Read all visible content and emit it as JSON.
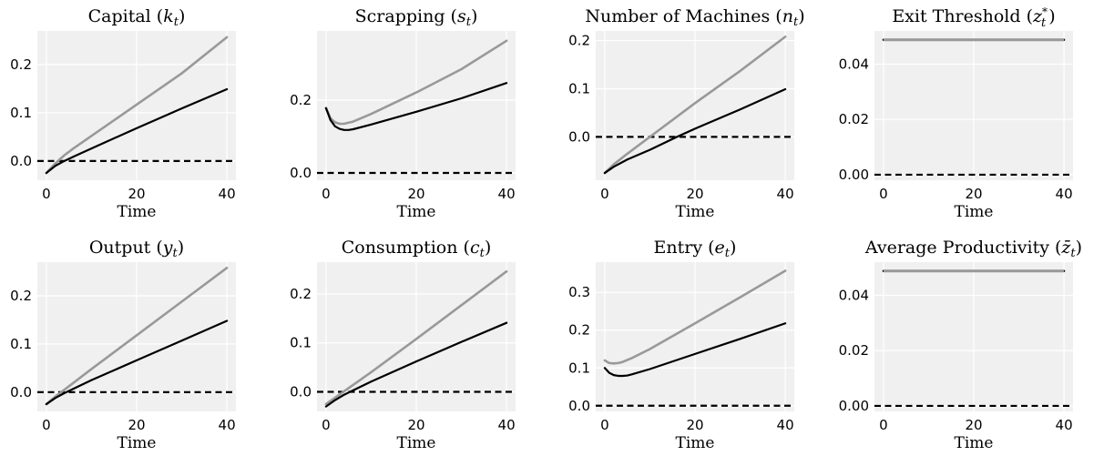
{
  "figure": {
    "colors": {
      "background": "#f0f0f0",
      "grid": "#ffffff",
      "series_black": "#000000",
      "series_gray": "#999999",
      "zero_line": "#000000"
    }
  },
  "chart_data": [
    {
      "type": "line",
      "title": "Capital (k_t)",
      "title_base": "Capital (",
      "title_var": "k",
      "title_sub": "t",
      "title_end": ")",
      "xlabel": "Time",
      "ylabel": "",
      "xlim": [
        -2,
        42
      ],
      "ylim": [
        -0.04,
        0.27
      ],
      "xticks": [
        0,
        20,
        40
      ],
      "yticks": [
        0.0,
        0.1,
        0.2
      ],
      "ytick_labels": [
        "0.0",
        "0.1",
        "0.2"
      ],
      "grid": true,
      "zero_line": {
        "y": 0,
        "style": "dashed"
      },
      "series": [
        {
          "style": "gray",
          "x": [
            0,
            2,
            4,
            6,
            10,
            20,
            30,
            40
          ],
          "y": [
            -0.025,
            -0.005,
            0.012,
            0.026,
            0.052,
            0.117,
            0.182,
            0.257
          ]
        },
        {
          "style": "black",
          "x": [
            0,
            2,
            4,
            6,
            10,
            20,
            30,
            40
          ],
          "y": [
            -0.025,
            -0.01,
            0.0,
            0.009,
            0.026,
            0.068,
            0.109,
            0.149
          ]
        }
      ]
    },
    {
      "type": "line",
      "title": "Scrapping (s_t)",
      "title_base": "Scrapping (",
      "title_var": "s",
      "title_sub": "t",
      "title_end": ")",
      "xlabel": "Time",
      "ylabel": "",
      "xlim": [
        -2,
        42
      ],
      "ylim": [
        -0.02,
        0.39
      ],
      "xticks": [
        0,
        20,
        40
      ],
      "yticks": [
        0.0,
        0.2
      ],
      "ytick_labels": [
        "0.0",
        "0.2"
      ],
      "grid": true,
      "zero_line": {
        "y": 0,
        "style": "dashed"
      },
      "series": [
        {
          "style": "gray",
          "x": [
            0,
            1,
            2,
            3,
            4,
            6,
            10,
            20,
            30,
            40
          ],
          "y": [
            0.178,
            0.15,
            0.139,
            0.135,
            0.135,
            0.141,
            0.162,
            0.221,
            0.285,
            0.363
          ]
        },
        {
          "style": "black",
          "x": [
            0,
            1,
            2,
            3,
            4,
            5,
            6,
            10,
            20,
            30,
            40
          ],
          "y": [
            0.178,
            0.145,
            0.128,
            0.121,
            0.118,
            0.118,
            0.12,
            0.133,
            0.168,
            0.205,
            0.247
          ]
        }
      ]
    },
    {
      "type": "line",
      "title": "Number of Machines (n_t)",
      "title_base": "Number of Machines (",
      "title_var": "n",
      "title_sub": "t",
      "title_end": ")",
      "xlabel": "Time",
      "ylabel": "",
      "xlim": [
        -2,
        42
      ],
      "ylim": [
        -0.09,
        0.22
      ],
      "xticks": [
        0,
        20,
        40
      ],
      "yticks": [
        0.0,
        0.1,
        0.2
      ],
      "ytick_labels": [
        "0.0",
        "0.1",
        "0.2"
      ],
      "grid": true,
      "zero_line": {
        "y": 0,
        "style": "dashed"
      },
      "series": [
        {
          "style": "gray",
          "x": [
            0,
            2,
            5,
            10,
            20,
            30,
            40
          ],
          "y": [
            -0.075,
            -0.057,
            -0.035,
            0.0,
            0.07,
            0.137,
            0.208
          ]
        },
        {
          "style": "black",
          "x": [
            0,
            2,
            5,
            10,
            16,
            20,
            30,
            40
          ],
          "y": [
            -0.075,
            -0.062,
            -0.047,
            -0.027,
            0.0,
            0.017,
            0.057,
            0.099
          ]
        }
      ]
    },
    {
      "type": "line",
      "title": "Exit Threshold (z_t^*)",
      "title_base": "Exit Threshold (",
      "title_var": "z",
      "title_sub": "t",
      "title_sup": "*",
      "title_end": ")",
      "xlabel": "Time",
      "ylabel": "",
      "xlim": [
        -2,
        42
      ],
      "ylim": [
        -0.002,
        0.052
      ],
      "xticks": [
        0,
        20,
        40
      ],
      "yticks": [
        0.0,
        0.02,
        0.04
      ],
      "ytick_labels": [
        "0.00",
        "0.02",
        "0.04"
      ],
      "grid": true,
      "zero_line": {
        "y": 0,
        "style": "dashed"
      },
      "series": [
        {
          "style": "gray",
          "x": [
            0,
            40
          ],
          "y": [
            0.0488,
            0.0488
          ]
        },
        {
          "style": "black",
          "x": [
            0,
            40
          ],
          "y": [
            0.0488,
            0.0488
          ]
        }
      ]
    },
    {
      "type": "line",
      "title": "Output (y_t)",
      "title_base": "Output (",
      "title_var": "y",
      "title_sub": "t",
      "title_end": ")",
      "xlabel": "Time",
      "ylabel": "",
      "xlim": [
        -2,
        42
      ],
      "ylim": [
        -0.04,
        0.27
      ],
      "xticks": [
        0,
        20,
        40
      ],
      "yticks": [
        0.0,
        0.1,
        0.2
      ],
      "ytick_labels": [
        "0.0",
        "0.1",
        "0.2"
      ],
      "grid": true,
      "zero_line": {
        "y": 0,
        "style": "dashed"
      },
      "series": [
        {
          "style": "gray",
          "x": [
            0,
            2,
            4,
            10,
            20,
            30,
            40
          ],
          "y": [
            -0.025,
            -0.009,
            0.005,
            0.048,
            0.118,
            0.188,
            0.258
          ]
        },
        {
          "style": "black",
          "x": [
            0,
            2,
            4,
            6,
            10,
            20,
            30,
            40
          ],
          "y": [
            -0.025,
            -0.012,
            -0.002,
            0.007,
            0.025,
            0.066,
            0.107,
            0.148
          ]
        }
      ]
    },
    {
      "type": "line",
      "title": "Consumption (c_t)",
      "title_base": "Consumption (",
      "title_var": "c",
      "title_sub": "t",
      "title_end": ")",
      "xlabel": "Time",
      "ylabel": "",
      "xlim": [
        -2,
        42
      ],
      "ylim": [
        -0.04,
        0.265
      ],
      "xticks": [
        0,
        20,
        40
      ],
      "yticks": [
        0.0,
        0.1,
        0.2
      ],
      "ytick_labels": [
        "0.0",
        "0.1",
        "0.2"
      ],
      "grid": true,
      "zero_line": {
        "y": 0,
        "style": "dashed"
      },
      "series": [
        {
          "style": "gray",
          "x": [
            0,
            2,
            4,
            10,
            20,
            30,
            40
          ],
          "y": [
            -0.025,
            -0.012,
            0.001,
            0.04,
            0.108,
            0.177,
            0.246
          ]
        },
        {
          "style": "black",
          "x": [
            0,
            2,
            4,
            6,
            10,
            20,
            30,
            40
          ],
          "y": [
            -0.03,
            -0.017,
            -0.006,
            0.003,
            0.021,
            0.062,
            0.102,
            0.141
          ]
        }
      ]
    },
    {
      "type": "line",
      "title": "Entry (e_t)",
      "title_base": "Entry (",
      "title_var": "e",
      "title_sub": "t",
      "title_end": ")",
      "xlabel": "Time",
      "ylabel": "",
      "xlim": [
        -2,
        42
      ],
      "ylim": [
        -0.015,
        0.38
      ],
      "xticks": [
        0,
        20,
        40
      ],
      "yticks": [
        0.0,
        0.1,
        0.2,
        0.3
      ],
      "ytick_labels": [
        "0.0",
        "0.1",
        "0.2",
        "0.3"
      ],
      "grid": true,
      "zero_line": {
        "y": 0,
        "style": "dashed"
      },
      "series": [
        {
          "style": "gray",
          "x": [
            0,
            1,
            2,
            3,
            4,
            6,
            10,
            20,
            30,
            40
          ],
          "y": [
            0.12,
            0.113,
            0.112,
            0.113,
            0.116,
            0.126,
            0.15,
            0.218,
            0.287,
            0.357
          ]
        },
        {
          "style": "black",
          "x": [
            0,
            1,
            2,
            3,
            4,
            5,
            6,
            10,
            20,
            30,
            40
          ],
          "y": [
            0.1,
            0.087,
            0.081,
            0.079,
            0.079,
            0.08,
            0.083,
            0.097,
            0.137,
            0.177,
            0.218
          ]
        }
      ]
    },
    {
      "type": "line",
      "title": "Average Productivity (z̄_t)",
      "title_base": "Average Productivity (",
      "title_var": "z̄",
      "title_sub": "t",
      "title_end": ")",
      "xlabel": "Time",
      "ylabel": "",
      "xlim": [
        -2,
        42
      ],
      "ylim": [
        -0.002,
        0.052
      ],
      "xticks": [
        0,
        20,
        40
      ],
      "yticks": [
        0.0,
        0.02,
        0.04
      ],
      "ytick_labels": [
        "0.00",
        "0.02",
        "0.04"
      ],
      "grid": true,
      "zero_line": {
        "y": 0,
        "style": "dashed"
      },
      "series": [
        {
          "style": "gray",
          "x": [
            0,
            40
          ],
          "y": [
            0.0488,
            0.0488
          ]
        },
        {
          "style": "black",
          "x": [
            0,
            40
          ],
          "y": [
            0.0488,
            0.0488
          ]
        }
      ]
    }
  ]
}
